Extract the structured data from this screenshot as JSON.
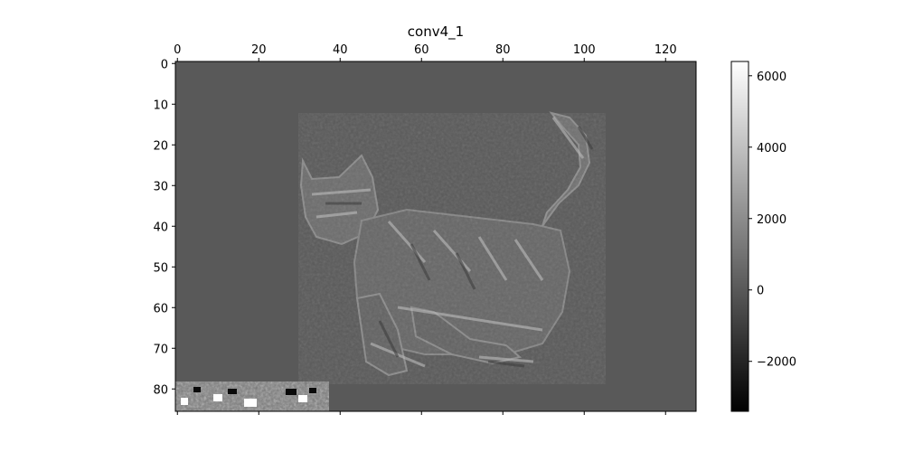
{
  "chart_data": {
    "type": "heatmap",
    "title": "conv4_1",
    "colormap": "gray",
    "x_ticks": [
      0,
      20,
      40,
      60,
      80,
      100,
      120
    ],
    "x_tick_labels": [
      "0",
      "20",
      "40",
      "60",
      "80",
      "100",
      "120"
    ],
    "xlim": [
      -0.5,
      127.5
    ],
    "x_axis_position": "top",
    "y_ticks": [
      0,
      10,
      20,
      30,
      40,
      50,
      60,
      70,
      80
    ],
    "y_tick_labels": [
      "0",
      "10",
      "20",
      "30",
      "40",
      "50",
      "60",
      "70",
      "80"
    ],
    "ylim": [
      85.5,
      -0.5
    ],
    "colorbar": {
      "range": [
        -3400,
        6400
      ],
      "ticks": [
        6000,
        4000,
        2000,
        0,
        -2000
      ],
      "tick_labels": [
        "6000",
        "4000",
        "2000",
        "0",
        "−2000"
      ]
    },
    "background_value": 0,
    "subject": "cat feature activation map"
  }
}
